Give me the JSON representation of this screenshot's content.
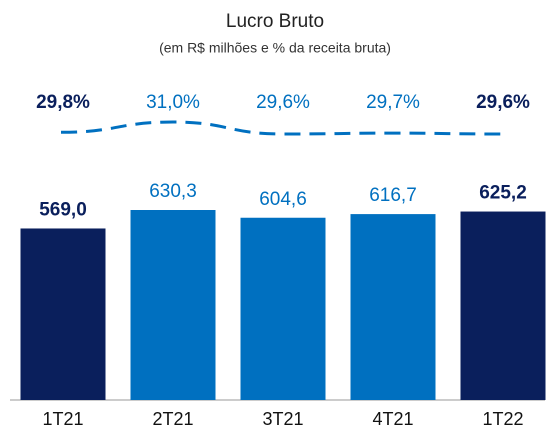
{
  "chart_data": {
    "type": "bar",
    "title": "Lucro Bruto",
    "subtitle": "(em R$ milhões e % da receita bruta)",
    "categories": [
      "1T21",
      "2T21",
      "3T21",
      "4T21",
      "1T22"
    ],
    "highlight": [
      true,
      false,
      false,
      false,
      true
    ],
    "color": "#0070c0",
    "highlight_color": "#0a1f5c",
    "series": [
      {
        "type": "bar",
        "values": [
          569.0,
          630.3,
          604.6,
          616.7,
          625.2
        ],
        "value_labels": [
          "569,0",
          "630,3",
          "604,6",
          "616,7",
          "625,2"
        ]
      },
      {
        "type": "line",
        "values": [
          29.8,
          31.0,
          29.6,
          29.7,
          29.6
        ],
        "value_labels": [
          "29,8%",
          "31,0%",
          "29,6%",
          "29,7%",
          "29,6%"
        ],
        "dashed": true
      }
    ]
  }
}
